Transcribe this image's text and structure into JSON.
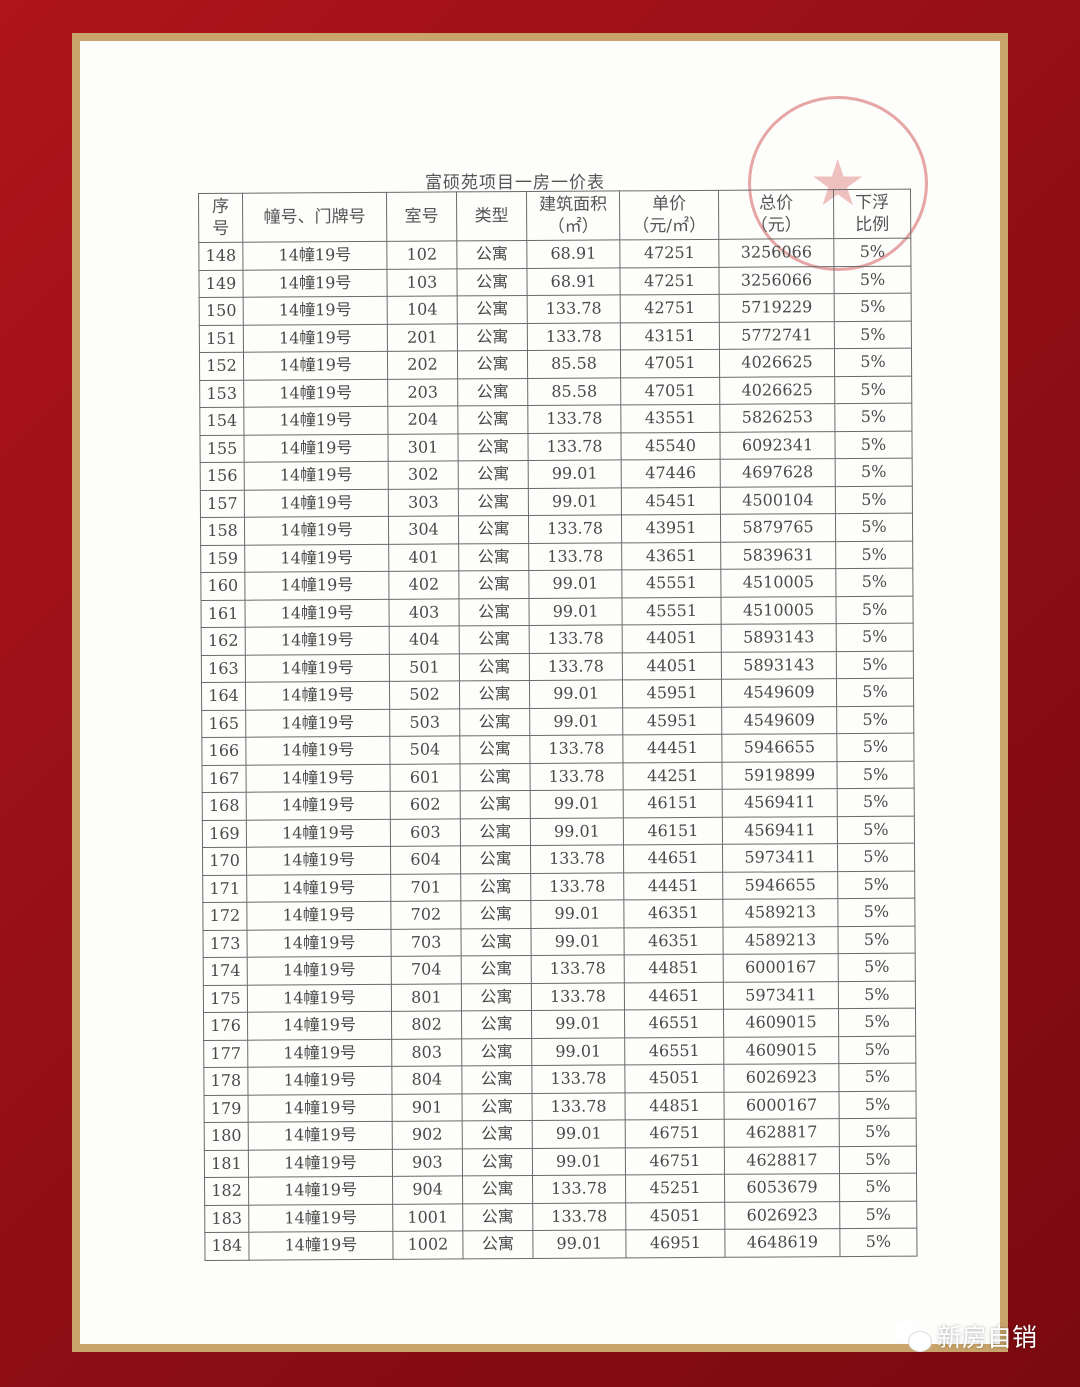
{
  "document": {
    "title": "富硕苑项目一房一价表",
    "headers": [
      "序\n号",
      "幢号、门牌号",
      "室号",
      "类型",
      "建筑面积\n（㎡）",
      "单价\n（元/㎡）",
      "总价\n（元）",
      "下浮\n比例"
    ],
    "rows": [
      [
        "148",
        "14幢19号",
        "102",
        "公寓",
        "68.91",
        "47251",
        "3256066",
        "5%"
      ],
      [
        "149",
        "14幢19号",
        "103",
        "公寓",
        "68.91",
        "47251",
        "3256066",
        "5%"
      ],
      [
        "150",
        "14幢19号",
        "104",
        "公寓",
        "133.78",
        "42751",
        "5719229",
        "5%"
      ],
      [
        "151",
        "14幢19号",
        "201",
        "公寓",
        "133.78",
        "43151",
        "5772741",
        "5%"
      ],
      [
        "152",
        "14幢19号",
        "202",
        "公寓",
        "85.58",
        "47051",
        "4026625",
        "5%"
      ],
      [
        "153",
        "14幢19号",
        "203",
        "公寓",
        "85.58",
        "47051",
        "4026625",
        "5%"
      ],
      [
        "154",
        "14幢19号",
        "204",
        "公寓",
        "133.78",
        "43551",
        "5826253",
        "5%"
      ],
      [
        "155",
        "14幢19号",
        "301",
        "公寓",
        "133.78",
        "45540",
        "6092341",
        "5%"
      ],
      [
        "156",
        "14幢19号",
        "302",
        "公寓",
        "99.01",
        "47446",
        "4697628",
        "5%"
      ],
      [
        "157",
        "14幢19号",
        "303",
        "公寓",
        "99.01",
        "45451",
        "4500104",
        "5%"
      ],
      [
        "158",
        "14幢19号",
        "304",
        "公寓",
        "133.78",
        "43951",
        "5879765",
        "5%"
      ],
      [
        "159",
        "14幢19号",
        "401",
        "公寓",
        "133.78",
        "43651",
        "5839631",
        "5%"
      ],
      [
        "160",
        "14幢19号",
        "402",
        "公寓",
        "99.01",
        "45551",
        "4510005",
        "5%"
      ],
      [
        "161",
        "14幢19号",
        "403",
        "公寓",
        "99.01",
        "45551",
        "4510005",
        "5%"
      ],
      [
        "162",
        "14幢19号",
        "404",
        "公寓",
        "133.78",
        "44051",
        "5893143",
        "5%"
      ],
      [
        "163",
        "14幢19号",
        "501",
        "公寓",
        "133.78",
        "44051",
        "5893143",
        "5%"
      ],
      [
        "164",
        "14幢19号",
        "502",
        "公寓",
        "99.01",
        "45951",
        "4549609",
        "5%"
      ],
      [
        "165",
        "14幢19号",
        "503",
        "公寓",
        "99.01",
        "45951",
        "4549609",
        "5%"
      ],
      [
        "166",
        "14幢19号",
        "504",
        "公寓",
        "133.78",
        "44451",
        "5946655",
        "5%"
      ],
      [
        "167",
        "14幢19号",
        "601",
        "公寓",
        "133.78",
        "44251",
        "5919899",
        "5%"
      ],
      [
        "168",
        "14幢19号",
        "602",
        "公寓",
        "99.01",
        "46151",
        "4569411",
        "5%"
      ],
      [
        "169",
        "14幢19号",
        "603",
        "公寓",
        "99.01",
        "46151",
        "4569411",
        "5%"
      ],
      [
        "170",
        "14幢19号",
        "604",
        "公寓",
        "133.78",
        "44651",
        "5973411",
        "5%"
      ],
      [
        "171",
        "14幢19号",
        "701",
        "公寓",
        "133.78",
        "44451",
        "5946655",
        "5%"
      ],
      [
        "172",
        "14幢19号",
        "702",
        "公寓",
        "99.01",
        "46351",
        "4589213",
        "5%"
      ],
      [
        "173",
        "14幢19号",
        "703",
        "公寓",
        "99.01",
        "46351",
        "4589213",
        "5%"
      ],
      [
        "174",
        "14幢19号",
        "704",
        "公寓",
        "133.78",
        "44851",
        "6000167",
        "5%"
      ],
      [
        "175",
        "14幢19号",
        "801",
        "公寓",
        "133.78",
        "44651",
        "5973411",
        "5%"
      ],
      [
        "176",
        "14幢19号",
        "802",
        "公寓",
        "99.01",
        "46551",
        "4609015",
        "5%"
      ],
      [
        "177",
        "14幢19号",
        "803",
        "公寓",
        "99.01",
        "46551",
        "4609015",
        "5%"
      ],
      [
        "178",
        "14幢19号",
        "804",
        "公寓",
        "133.78",
        "45051",
        "6026923",
        "5%"
      ],
      [
        "179",
        "14幢19号",
        "901",
        "公寓",
        "133.78",
        "44851",
        "6000167",
        "5%"
      ],
      [
        "180",
        "14幢19号",
        "902",
        "公寓",
        "99.01",
        "46751",
        "4628817",
        "5%"
      ],
      [
        "181",
        "14幢19号",
        "903",
        "公寓",
        "99.01",
        "46751",
        "4628817",
        "5%"
      ],
      [
        "182",
        "14幢19号",
        "904",
        "公寓",
        "133.78",
        "45251",
        "6053679",
        "5%"
      ],
      [
        "183",
        "14幢19号",
        "1001",
        "公寓",
        "133.78",
        "45051",
        "6026923",
        "5%"
      ],
      [
        "184",
        "14幢19号",
        "1002",
        "公寓",
        "99.01",
        "46951",
        "4648619",
        "5%"
      ]
    ]
  },
  "watermark": {
    "icon": "wechat-icon",
    "text": "新房自销"
  },
  "colors": {
    "background": "#9e1018",
    "frame": "#c9a46a",
    "stamp": "#c83c3c"
  }
}
